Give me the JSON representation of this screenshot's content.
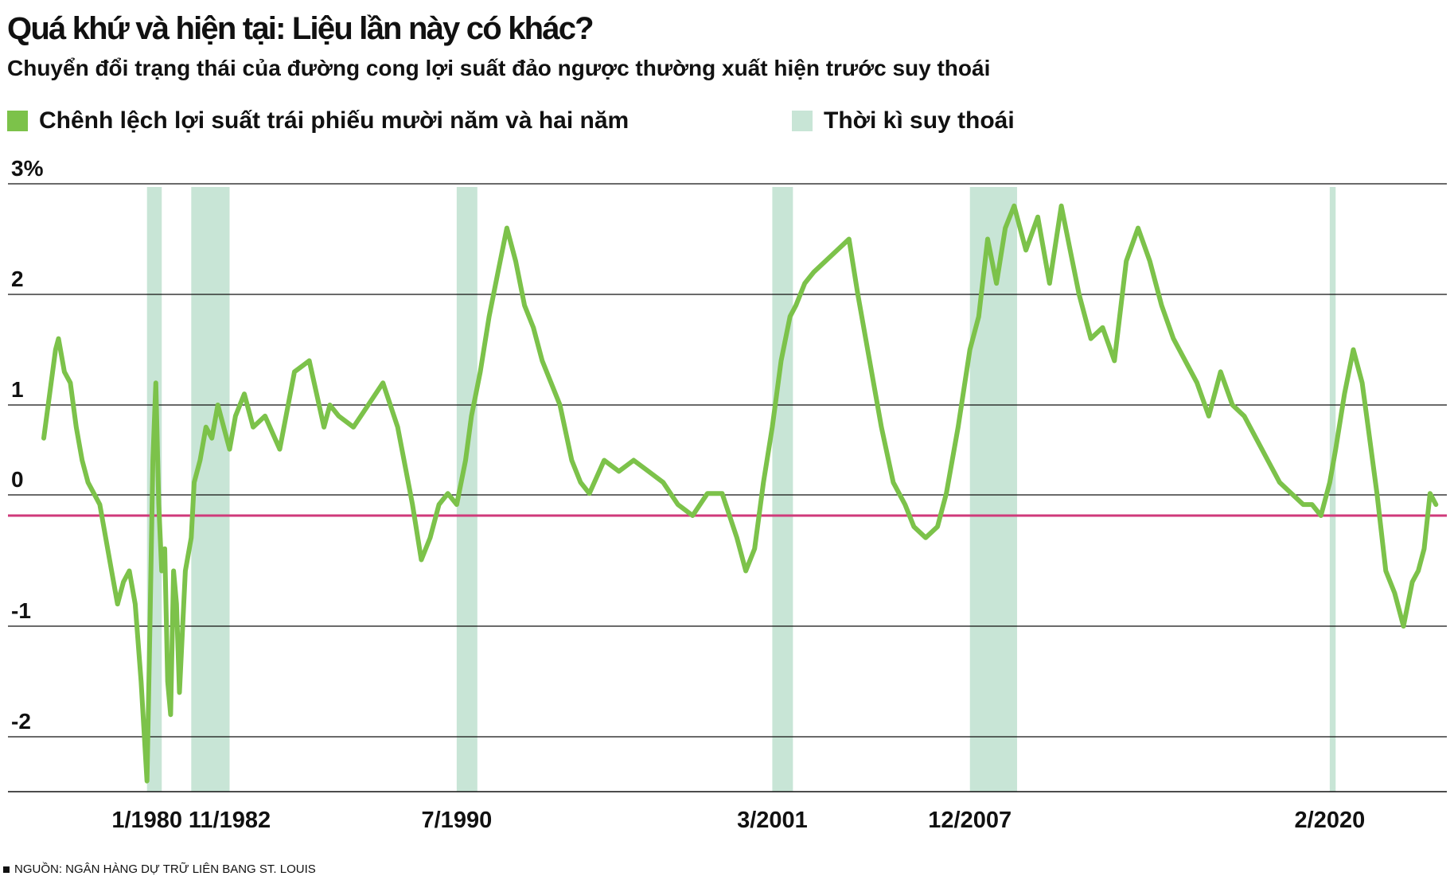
{
  "title": "Quá khứ và hiện tại: Liệu lần này có khác?",
  "subtitle": "Chuyển đổi trạng thái của đường cong lợi suất đảo ngược thường xuất hiện trước suy thoái",
  "source": "NGUỒN: NGÂN HÀNG DỰ TRỮ LIÊN BANG ST. LOUIS",
  "colors": {
    "spread": "#7cc24a",
    "recession": "#c8e5d6",
    "zero_line": "#cf3a7a",
    "grid": "#111111"
  },
  "chart_data": {
    "type": "line",
    "title": "Quá khứ và hiện tại: Liệu lần này có khác?",
    "subtitle": "Chuyển đổi trạng thái của đường cong lợi suất đảo ngược thường xuất hiện trước suy thoái",
    "xlabel": "",
    "ylabel": "",
    "ylim": [
      -2.5,
      3
    ],
    "xlim": [
      1976.5,
      2023.8
    ],
    "y_ticks": [
      3,
      2,
      1,
      0,
      -1,
      -2
    ],
    "y_tick_labels": [
      "3%",
      "2",
      "1",
      "0",
      "-1",
      "-2"
    ],
    "x_ticks": [
      1980.0,
      1982.8,
      1990.5,
      2001.2,
      2007.9,
      2020.1
    ],
    "x_tick_labels": [
      "1/1980",
      "11/1982",
      "7/1990",
      "3/2001",
      "12/2007",
      "2/2020"
    ],
    "grid": true,
    "legend": {
      "placement": "top",
      "entries": [
        {
          "label": "Chênh lệch lợi suất trái phiếu mười năm và hai năm",
          "color": "#7cc24a",
          "shape": "square"
        },
        {
          "label": "Thời kì suy thoái",
          "color": "#c8e5d6",
          "shape": "square"
        }
      ]
    },
    "recessions": [
      {
        "start": 1980.0,
        "end": 1980.5
      },
      {
        "start": 1981.5,
        "end": 1982.8
      },
      {
        "start": 1990.5,
        "end": 1991.2
      },
      {
        "start": 2001.2,
        "end": 2001.9
      },
      {
        "start": 2007.9,
        "end": 2009.5
      },
      {
        "start": 2020.1,
        "end": 2020.3
      }
    ],
    "reference_line": {
      "y": 0
    },
    "series": [
      {
        "name": "Chênh lệch lợi suất trái phiếu mười năm và hai năm",
        "x": [
          1976.5,
          1976.7,
          1976.9,
          1977.0,
          1977.2,
          1977.4,
          1977.6,
          1977.8,
          1978.0,
          1978.2,
          1978.4,
          1978.6,
          1978.8,
          1979.0,
          1979.2,
          1979.4,
          1979.6,
          1979.8,
          1980.0,
          1980.1,
          1980.2,
          1980.3,
          1980.4,
          1980.5,
          1980.6,
          1980.7,
          1980.8,
          1980.9,
          1981.0,
          1981.1,
          1981.3,
          1981.5,
          1981.6,
          1981.8,
          1982.0,
          1982.2,
          1982.4,
          1982.6,
          1982.8,
          1983.0,
          1983.3,
          1983.6,
          1984.0,
          1984.5,
          1985.0,
          1985.5,
          1986.0,
          1986.2,
          1986.5,
          1987.0,
          1987.5,
          1988.0,
          1988.5,
          1989.0,
          1989.3,
          1989.6,
          1989.9,
          1990.2,
          1990.5,
          1990.8,
          1991.0,
          1991.3,
          1991.6,
          1991.9,
          1992.2,
          1992.5,
          1992.8,
          1993.1,
          1993.4,
          1993.7,
          1994.0,
          1994.4,
          1994.7,
          1995.0,
          1995.5,
          1996.0,
          1996.5,
          1997.0,
          1997.5,
          1998.0,
          1998.5,
          1999.0,
          1999.5,
          2000.0,
          2000.3,
          2000.6,
          2000.9,
          2001.2,
          2001.5,
          2001.8,
          2002.0,
          2002.3,
          2002.6,
          2003.0,
          2003.4,
          2003.8,
          2004.1,
          2004.5,
          2004.9,
          2005.3,
          2005.7,
          2006.0,
          2006.4,
          2006.8,
          2007.1,
          2007.5,
          2007.9,
          2008.2,
          2008.5,
          2008.8,
          2009.1,
          2009.4,
          2009.8,
          2010.2,
          2010.6,
          2011.0,
          2011.3,
          2011.6,
          2012.0,
          2012.4,
          2012.8,
          2013.2,
          2013.6,
          2014.0,
          2014.4,
          2014.8,
          2015.2,
          2015.6,
          2016.0,
          2016.4,
          2016.8,
          2017.2,
          2017.6,
          2018.0,
          2018.4,
          2018.8,
          2019.2,
          2019.5,
          2019.8,
          2020.1,
          2020.3,
          2020.6,
          2020.9,
          2021.2,
          2021.4,
          2021.7,
          2022.0,
          2022.3,
          2022.6,
          2022.9,
          2023.1,
          2023.3,
          2023.5,
          2023.7
        ],
        "y": [
          0.7,
          1.1,
          1.5,
          1.6,
          1.3,
          1.2,
          0.8,
          0.5,
          0.3,
          0.2,
          0.1,
          -0.2,
          -0.5,
          -0.8,
          -0.6,
          -0.5,
          -0.8,
          -1.5,
          -2.4,
          -1.0,
          0.5,
          1.2,
          0.1,
          -0.5,
          -0.3,
          -1.5,
          -1.8,
          -0.5,
          -0.8,
          -1.6,
          -0.5,
          -0.2,
          0.3,
          0.5,
          0.8,
          0.7,
          1.0,
          0.8,
          0.6,
          0.9,
          1.1,
          0.8,
          0.9,
          0.6,
          1.3,
          1.4,
          0.8,
          1.0,
          0.9,
          0.8,
          1.0,
          1.2,
          0.8,
          0.1,
          -0.4,
          -0.2,
          0.1,
          0.2,
          0.1,
          0.5,
          0.9,
          1.3,
          1.8,
          2.2,
          2.6,
          2.3,
          1.9,
          1.7,
          1.4,
          1.2,
          1.0,
          0.5,
          0.3,
          0.2,
          0.5,
          0.4,
          0.5,
          0.4,
          0.3,
          0.1,
          0.0,
          0.2,
          0.2,
          -0.2,
          -0.5,
          -0.3,
          0.3,
          0.8,
          1.4,
          1.8,
          1.9,
          2.1,
          2.2,
          2.3,
          2.4,
          2.5,
          2.0,
          1.4,
          0.8,
          0.3,
          0.1,
          -0.1,
          -0.2,
          -0.1,
          0.2,
          0.8,
          1.5,
          1.8,
          2.5,
          2.1,
          2.6,
          2.8,
          2.4,
          2.7,
          2.1,
          2.8,
          2.4,
          2.0,
          1.6,
          1.7,
          1.4,
          2.3,
          2.6,
          2.3,
          1.9,
          1.6,
          1.4,
          1.2,
          0.9,
          1.3,
          1.0,
          0.9,
          0.7,
          0.5,
          0.3,
          0.2,
          0.1,
          0.1,
          0.0,
          0.3,
          0.6,
          1.1,
          1.5,
          1.2,
          0.8,
          0.2,
          -0.5,
          -0.7,
          -1.0,
          -0.6,
          -0.5,
          -0.3,
          0.2,
          0.1
        ]
      }
    ]
  }
}
